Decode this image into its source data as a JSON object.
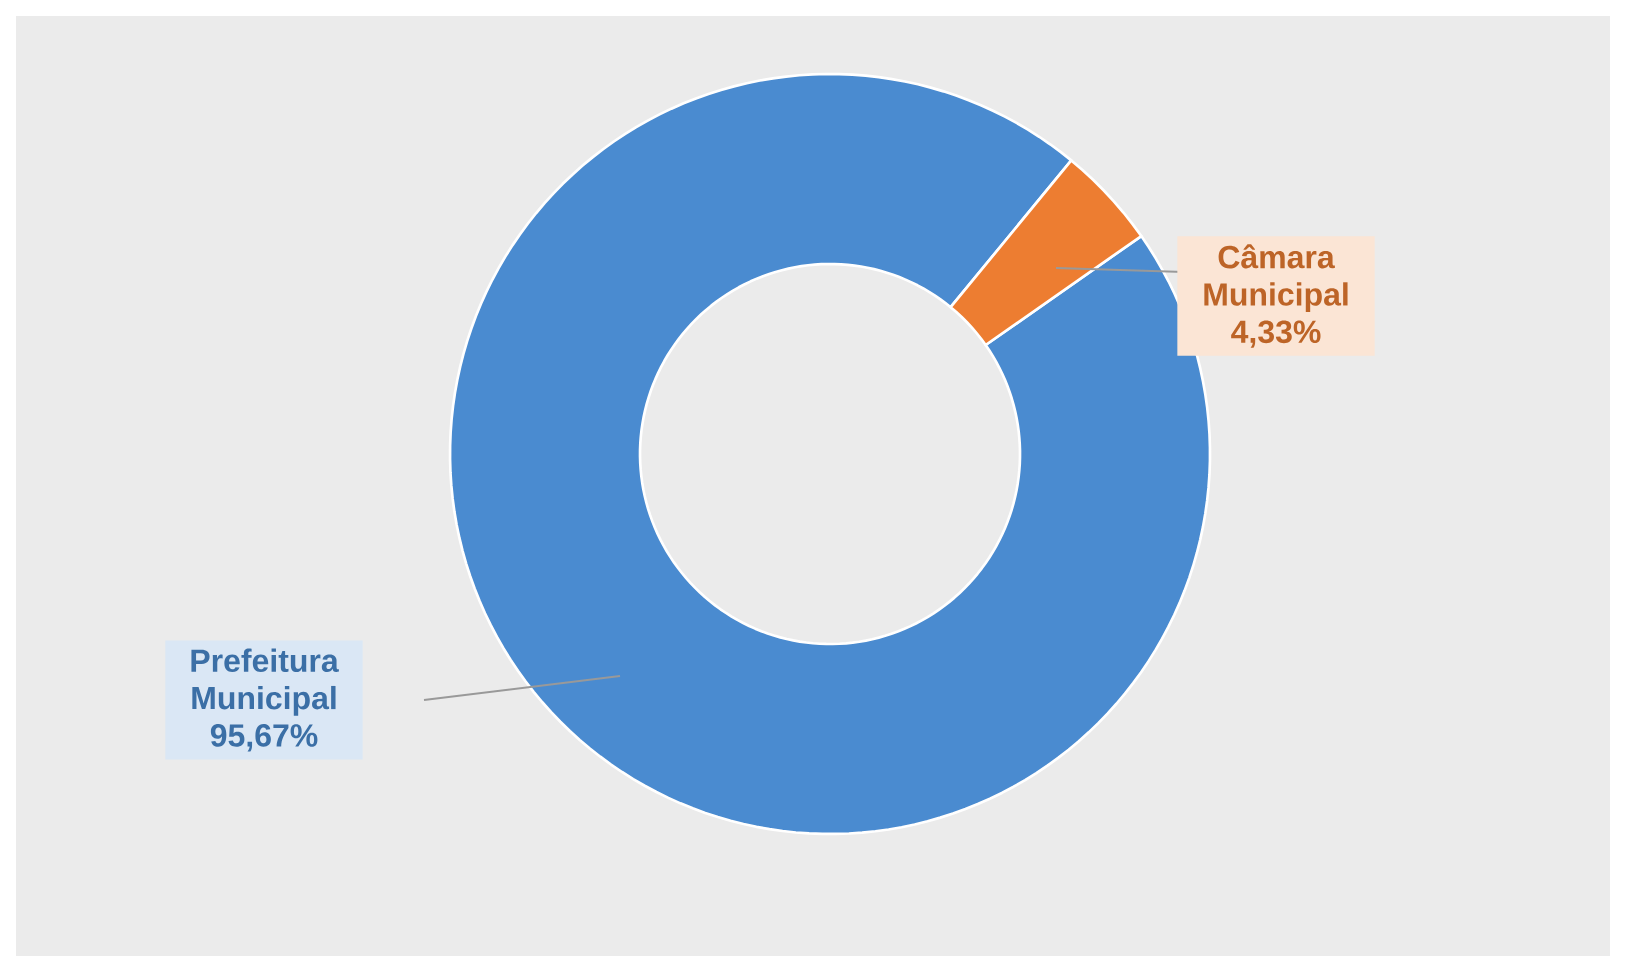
{
  "chart_data": {
    "type": "donut",
    "categories": [
      "Prefeitura Municipal",
      "Câmara Municipal"
    ],
    "values": [
      95.67,
      4.33
    ],
    "value_labels": [
      "95,67%",
      "4,33%"
    ],
    "colors": [
      "#4a8bd0",
      "#ed7d31"
    ]
  }
}
